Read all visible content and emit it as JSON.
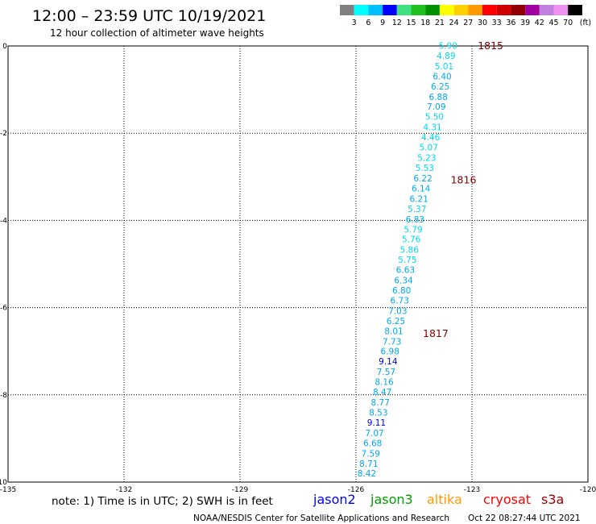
{
  "header": {
    "title": "12:00 – 23:59 UTC 10/19/2021",
    "subtitle": "12 hour collection of altimeter wave heights"
  },
  "legend": {
    "labels": [
      "3",
      "6",
      "9",
      "12",
      "15",
      "18",
      "21",
      "24",
      "27",
      "30",
      "33",
      "36",
      "39",
      "42",
      "45",
      "70"
    ],
    "unit": "(ft)",
    "colors": [
      "#808080",
      "#00ffff",
      "#00bfff",
      "#0000ff",
      "#40e080",
      "#20c020",
      "#009000",
      "#ffff00",
      "#ffd000",
      "#ff9900",
      "#ff0000",
      "#d00000",
      "#900000",
      "#a000a0",
      "#c080e0",
      "#f090f0",
      "#000000"
    ]
  },
  "footer": {
    "note": "note: 1) Time is in UTC; 2) SWH is in feet",
    "credit": "NOAA/NESDIS Center for Satellite Applications and Research",
    "timestamp": "Oct 22 08:27:44 UTC 2021",
    "satellites": [
      {
        "name": "jason2",
        "color": "#0000ff"
      },
      {
        "name": "jason3",
        "color": "#00a000"
      },
      {
        "name": "altika",
        "color": "#ff9900"
      },
      {
        "name": "cryosat",
        "color": "#ff0000"
      },
      {
        "name": "s3a",
        "color": "#a00000"
      }
    ]
  },
  "chart_data": {
    "type": "scatter",
    "xlim": [
      -135,
      -120
    ],
    "ylim": [
      -10,
      0
    ],
    "x_ticks": [
      {
        "value": -135,
        "label": "-135"
      },
      {
        "value": -132,
        "label": "-132"
      },
      {
        "value": -129,
        "label": "-129"
      },
      {
        "value": -126,
        "label": "-126"
      },
      {
        "value": -123,
        "label": "-123"
      },
      {
        "value": -120,
        "label": "-120"
      }
    ],
    "y_ticks": [
      {
        "value": 0,
        "label": "0"
      },
      {
        "value": -2,
        "label": "-2"
      },
      {
        "value": -4,
        "label": "-4"
      },
      {
        "value": -6,
        "label": "-6"
      },
      {
        "value": -8,
        "label": "-8"
      },
      {
        "value": -10,
        "label": "-10"
      }
    ],
    "grid": true,
    "times": [
      {
        "label": "1815",
        "lon": -122.85,
        "lat": 0.0
      },
      {
        "label": "1816",
        "lon": -123.55,
        "lat": -3.08
      },
      {
        "label": "1817",
        "lon": -124.27,
        "lat": -6.6
      }
    ],
    "points": [
      {
        "lon": -123.62,
        "lat": 0.0,
        "swh": "5.90"
      },
      {
        "lon": -123.67,
        "lat": -0.23,
        "swh": "4.89"
      },
      {
        "lon": -123.72,
        "lat": -0.47,
        "swh": "5.01"
      },
      {
        "lon": -123.77,
        "lat": -0.7,
        "swh": "6.40"
      },
      {
        "lon": -123.82,
        "lat": -0.93,
        "swh": "6.25"
      },
      {
        "lon": -123.87,
        "lat": -1.17,
        "swh": "6.88"
      },
      {
        "lon": -123.92,
        "lat": -1.4,
        "swh": "7.09"
      },
      {
        "lon": -123.97,
        "lat": -1.63,
        "swh": "5.50"
      },
      {
        "lon": -124.02,
        "lat": -1.87,
        "swh": "4.31"
      },
      {
        "lon": -124.07,
        "lat": -2.1,
        "swh": "4.46"
      },
      {
        "lon": -124.12,
        "lat": -2.33,
        "swh": "5.07"
      },
      {
        "lon": -124.17,
        "lat": -2.57,
        "swh": "5.23"
      },
      {
        "lon": -124.22,
        "lat": -2.8,
        "swh": "5.53"
      },
      {
        "lon": -124.27,
        "lat": -3.04,
        "swh": "6.22"
      },
      {
        "lon": -124.32,
        "lat": -3.27,
        "swh": "6.14"
      },
      {
        "lon": -124.37,
        "lat": -3.51,
        "swh": "6.21"
      },
      {
        "lon": -124.42,
        "lat": -3.74,
        "swh": "5.37"
      },
      {
        "lon": -124.47,
        "lat": -3.98,
        "swh": "6.83"
      },
      {
        "lon": -124.52,
        "lat": -4.21,
        "swh": "5.79"
      },
      {
        "lon": -124.57,
        "lat": -4.44,
        "swh": "5.76"
      },
      {
        "lon": -124.62,
        "lat": -4.68,
        "swh": "5.86"
      },
      {
        "lon": -124.67,
        "lat": -4.91,
        "swh": "5.75"
      },
      {
        "lon": -124.72,
        "lat": -5.14,
        "swh": "6.63"
      },
      {
        "lon": -124.77,
        "lat": -5.38,
        "swh": "6.34"
      },
      {
        "lon": -124.82,
        "lat": -5.61,
        "swh": "6.80"
      },
      {
        "lon": -124.87,
        "lat": -5.84,
        "swh": "6.73"
      },
      {
        "lon": -124.92,
        "lat": -6.08,
        "swh": "7.03"
      },
      {
        "lon": -124.97,
        "lat": -6.31,
        "swh": "6.25"
      },
      {
        "lon": -125.02,
        "lat": -6.54,
        "swh": "8.01"
      },
      {
        "lon": -125.07,
        "lat": -6.78,
        "swh": "7.73"
      },
      {
        "lon": -125.12,
        "lat": -7.01,
        "swh": "6.98"
      },
      {
        "lon": -125.17,
        "lat": -7.24,
        "swh": "9.14"
      },
      {
        "lon": -125.22,
        "lat": -7.48,
        "swh": "7.57"
      },
      {
        "lon": -125.27,
        "lat": -7.71,
        "swh": "8.16"
      },
      {
        "lon": -125.32,
        "lat": -7.94,
        "swh": "8.47"
      },
      {
        "lon": -125.37,
        "lat": -8.18,
        "swh": "8.77"
      },
      {
        "lon": -125.42,
        "lat": -8.41,
        "swh": "8.53"
      },
      {
        "lon": -125.47,
        "lat": -8.64,
        "swh": "9.11"
      },
      {
        "lon": -125.52,
        "lat": -8.88,
        "swh": "7.07"
      },
      {
        "lon": -125.57,
        "lat": -9.11,
        "swh": "6.68"
      },
      {
        "lon": -125.62,
        "lat": -9.35,
        "swh": "7.59"
      },
      {
        "lon": -125.67,
        "lat": -9.58,
        "swh": "8.71"
      },
      {
        "lon": -125.72,
        "lat": -9.81,
        "swh": "8.42"
      }
    ]
  }
}
